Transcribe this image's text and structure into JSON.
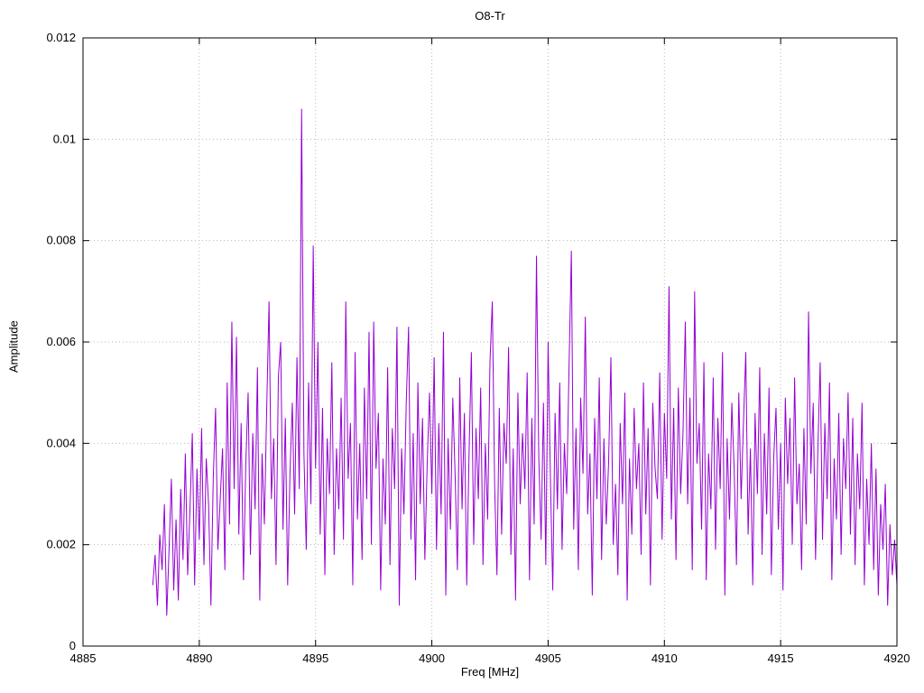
{
  "page": {
    "background": "#ffffff"
  },
  "chart_data": {
    "type": "line",
    "title": "O8-Tr",
    "xlabel": "Freq [MHz]",
    "ylabel": "Amplitude",
    "xlim": [
      4885,
      4920
    ],
    "ylim": [
      0,
      0.012
    ],
    "x_ticks": [
      4885,
      4890,
      4895,
      4900,
      4905,
      4910,
      4915,
      4920
    ],
    "x_tick_labels": [
      "4885",
      "4890",
      "4895",
      "4900",
      "4905",
      "4910",
      "4915",
      "4920"
    ],
    "y_ticks": [
      0,
      0.002,
      0.004,
      0.006,
      0.008,
      0.01,
      0.012
    ],
    "y_tick_labels": [
      "0",
      "0.002",
      "0.004",
      "0.006",
      "0.008",
      "0.01",
      "0.012"
    ],
    "grid": "dotted",
    "grid_color": "#b8b8b8",
    "axis_color": "#000000",
    "legend": "none",
    "line_color": "#9400d3",
    "note": "dense noise spectrum, data region 4888-4920 MHz, baseline ~0.001-0.005, max peak ~0.0106 near 4894.4 MHz",
    "series": [
      {
        "name": "O8-Tr",
        "x_start": 4888.0,
        "x_step": 0.1,
        "y_units": 0.0001,
        "y": [
          12,
          18,
          8,
          22,
          15,
          28,
          6,
          19,
          33,
          11,
          25,
          9,
          31,
          17,
          38,
          14,
          27,
          42,
          12,
          35,
          21,
          43,
          16,
          37,
          28,
          8,
          33,
          47,
          19,
          29,
          39,
          15,
          52,
          24,
          64,
          31,
          61,
          22,
          44,
          13,
          36,
          50,
          18,
          42,
          27,
          55,
          9,
          38,
          24,
          47,
          68,
          29,
          41,
          16,
          53,
          60,
          23,
          45,
          12,
          34,
          48,
          26,
          57,
          31,
          106,
          38,
          19,
          52,
          28,
          79,
          35,
          60,
          22,
          47,
          14,
          41,
          30,
          56,
          18,
          39,
          27,
          49,
          21,
          68,
          33,
          44,
          12,
          58,
          25,
          40,
          17,
          51,
          29,
          62,
          20,
          64,
          35,
          46,
          11,
          37,
          24,
          55,
          16,
          43,
          31,
          63,
          8,
          39,
          26,
          48,
          63,
          21,
          42,
          13,
          52,
          28,
          45,
          17,
          36,
          50,
          30,
          57,
          19,
          44,
          26,
          62,
          10,
          41,
          23,
          49,
          34,
          15,
          53,
          27,
          46,
          12,
          38,
          58,
          20,
          43,
          29,
          51,
          16,
          40,
          25,
          56,
          68,
          32,
          14,
          47,
          22,
          44,
          36,
          59,
          18,
          39,
          9,
          50,
          28,
          42,
          31,
          54,
          13,
          45,
          24,
          77,
          37,
          21,
          48,
          16,
          60,
          33,
          11,
          46,
          27,
          52,
          19,
          40,
          30,
          55,
          78,
          23,
          43,
          15,
          49,
          34,
          65,
          26,
          38,
          10,
          45,
          29,
          53,
          17,
          41,
          24,
          36,
          57,
          20,
          32,
          14,
          44,
          28,
          50,
          9,
          37,
          22,
          47,
          31,
          40,
          18,
          52,
          26,
          43,
          12,
          48,
          35,
          29,
          54,
          21,
          46,
          33,
          71,
          25,
          47,
          17,
          51,
          30,
          42,
          64,
          28,
          49,
          15,
          70,
          36,
          44,
          23,
          56,
          13,
          38,
          27,
          53,
          19,
          45,
          31,
          58,
          10,
          41,
          25,
          48,
          35,
          16,
          50,
          29,
          44,
          58,
          22,
          39,
          12,
          46,
          30,
          55,
          18,
          42,
          26,
          51,
          14,
          37,
          47,
          23,
          40,
          11,
          49,
          32,
          45,
          20,
          53,
          28,
          36,
          15,
          43,
          24,
          66,
          34,
          48,
          17,
          39,
          56,
          21,
          44,
          29,
          52,
          13,
          37,
          25,
          46,
          18,
          41,
          31,
          50,
          22,
          45,
          16,
          38,
          27,
          48,
          12,
          33,
          20,
          40,
          15,
          35,
          10,
          28,
          19,
          32,
          8,
          24,
          14,
          21,
          12
        ]
      }
    ]
  }
}
